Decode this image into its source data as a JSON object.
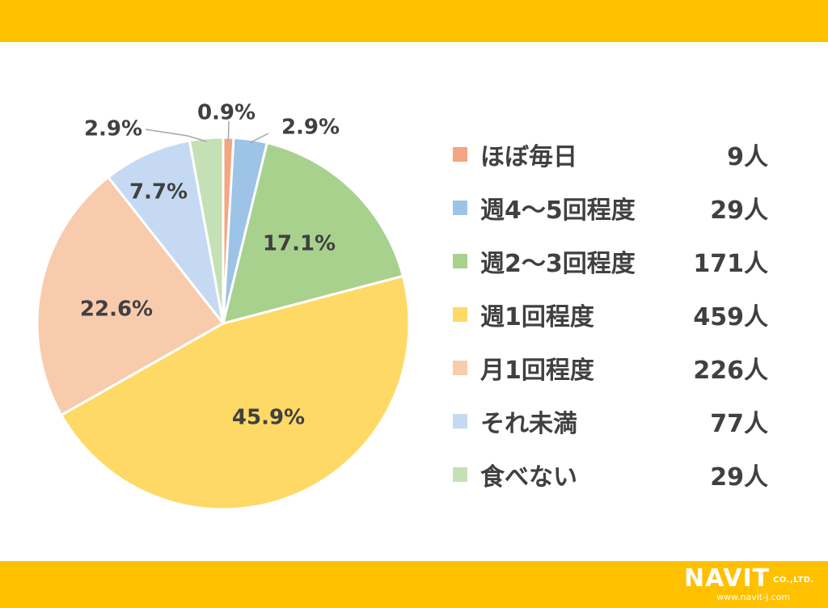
{
  "chart_data": {
    "type": "pie",
    "title": "",
    "slices": [
      {
        "label": "ほぼ毎日",
        "percent": 0.9,
        "count": "9人",
        "color": "#f4a582",
        "pct_text": "0.9%"
      },
      {
        "label": "週4～5回程度",
        "percent": 2.9,
        "count": "29人",
        "color": "#9dc3e6",
        "pct_text": "2.9%"
      },
      {
        "label": "週2～3回程度",
        "percent": 17.1,
        "count": "171人",
        "color": "#a9d18e",
        "pct_text": "17.1%"
      },
      {
        "label": "週1回程度",
        "percent": 45.9,
        "count": "459人",
        "color": "#ffd966",
        "pct_text": "45.9%"
      },
      {
        "label": "月1回程度",
        "percent": 22.6,
        "count": "226人",
        "color": "#f8cbad",
        "pct_text": "22.6%"
      },
      {
        "label": "それ未満",
        "percent": 7.7,
        "count": "77人",
        "color": "#c5daf2",
        "pct_text": "7.7%"
      },
      {
        "label": "食べない",
        "percent": 2.9,
        "count": "29人",
        "color": "#c5e0b4",
        "pct_text": "2.9%"
      }
    ],
    "legend_position": "right"
  },
  "logo": {
    "name": "NAVIT",
    "suffix": "CO.,LTD.",
    "url": "www.navit-j.com"
  },
  "colors": {
    "band": "#ffc000",
    "text": "#404040"
  }
}
